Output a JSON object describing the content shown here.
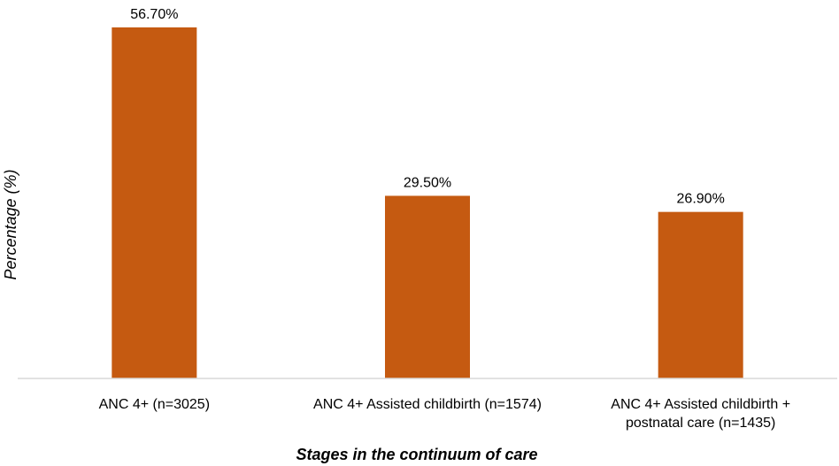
{
  "chart_data": {
    "type": "bar",
    "categories": [
      [
        "ANC 4+ (n=3025)"
      ],
      [
        "ANC 4+ Assisted childbirth (n=1574)"
      ],
      [
        "ANC 4+ Assisted childbirth +",
        "postnatal care (n=1435)"
      ]
    ],
    "values": [
      56.7,
      29.5,
      26.9
    ],
    "data_labels": [
      "56.70%",
      "29.50%",
      "26.90%"
    ],
    "xlabel": "Stages in the continuum of care",
    "ylabel": "Percentage (%)",
    "ylim": [
      0,
      56.7
    ],
    "grid": false,
    "legend": "none",
    "colors": {
      "bar": "#C55A11",
      "axis": "#D9D9D9"
    }
  }
}
